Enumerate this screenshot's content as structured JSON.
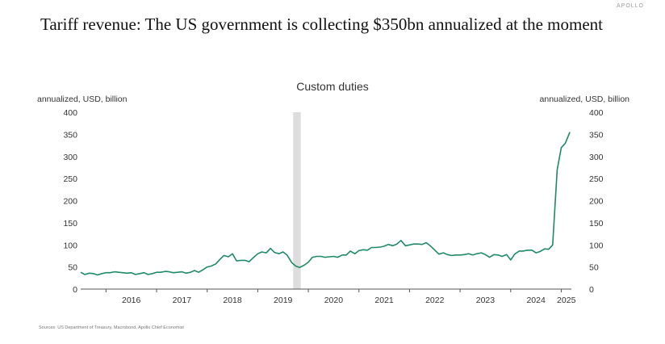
{
  "headline": "Tariff revenue: The US government is collecting $350bn annualized at the moment",
  "corner_logo": "APOLLO",
  "source": "Sources: US Department of Treasury, Macrobond, Apollo Chief Economist",
  "colors": {
    "line": "#1f8a66",
    "shade": "#dddddd",
    "axis": "#555555"
  },
  "chart_data": {
    "type": "line",
    "title": "Custom duties",
    "ylabel_left": "annualized, USD, billion",
    "ylabel_right": "annualized, USD, billion",
    "ylim": [
      0,
      400
    ],
    "yticks": [
      0,
      50,
      100,
      150,
      200,
      250,
      300,
      350,
      400
    ],
    "xlim": [
      2015.5,
      2025.2
    ],
    "xtick_labels": [
      "2016",
      "2017",
      "2018",
      "2019",
      "2020",
      "2021",
      "2022",
      "2023",
      "2024",
      "2025"
    ],
    "recession_band": [
      2019.7,
      2019.85
    ],
    "series": [
      {
        "name": "Custom duties",
        "x": [
          2015.5,
          2015.58,
          2015.67,
          2015.75,
          2015.83,
          2015.92,
          2016.0,
          2016.08,
          2016.17,
          2016.25,
          2016.33,
          2016.42,
          2016.5,
          2016.58,
          2016.67,
          2016.75,
          2016.83,
          2016.92,
          2017.0,
          2017.08,
          2017.17,
          2017.25,
          2017.33,
          2017.42,
          2017.5,
          2017.58,
          2017.67,
          2017.75,
          2017.83,
          2017.92,
          2018.0,
          2018.08,
          2018.17,
          2018.25,
          2018.33,
          2018.42,
          2018.5,
          2018.58,
          2018.67,
          2018.75,
          2018.83,
          2018.92,
          2019.0,
          2019.08,
          2019.17,
          2019.25,
          2019.33,
          2019.42,
          2019.5,
          2019.58,
          2019.67,
          2019.75,
          2019.83,
          2019.92,
          2020.0,
          2020.08,
          2020.17,
          2020.25,
          2020.33,
          2020.42,
          2020.5,
          2020.58,
          2020.67,
          2020.75,
          2020.83,
          2020.92,
          2021.0,
          2021.08,
          2021.17,
          2021.25,
          2021.33,
          2021.42,
          2021.5,
          2021.58,
          2021.67,
          2021.75,
          2021.83,
          2021.92,
          2022.0,
          2022.08,
          2022.17,
          2022.25,
          2022.33,
          2022.42,
          2022.5,
          2022.58,
          2022.67,
          2022.75,
          2022.83,
          2022.92,
          2023.0,
          2023.08,
          2023.17,
          2023.25,
          2023.33,
          2023.42,
          2023.5,
          2023.58,
          2023.67,
          2023.75,
          2023.83,
          2023.92,
          2024.0,
          2024.08,
          2024.17,
          2024.25,
          2024.33,
          2024.42,
          2024.5,
          2024.58,
          2024.67,
          2024.75,
          2024.83,
          2024.92,
          2025.0,
          2025.08,
          2025.17
        ],
        "values": [
          38,
          33,
          36,
          35,
          32,
          35,
          37,
          37,
          39,
          38,
          37,
          36,
          37,
          33,
          35,
          37,
          33,
          35,
          38,
          38,
          40,
          39,
          37,
          38,
          39,
          36,
          38,
          42,
          38,
          44,
          50,
          52,
          57,
          67,
          76,
          73,
          80,
          64,
          65,
          65,
          62,
          72,
          80,
          84,
          82,
          92,
          83,
          80,
          84,
          77,
          60,
          52,
          49,
          54,
          61,
          72,
          74,
          74,
          72,
          73,
          74,
          72,
          77,
          77,
          86,
          80,
          87,
          89,
          88,
          94,
          94,
          95,
          97,
          101,
          98,
          102,
          110,
          98,
          100,
          102,
          102,
          101,
          105,
          97,
          88,
          79,
          82,
          78,
          76,
          77,
          77,
          78,
          80,
          77,
          80,
          82,
          78,
          72,
          78,
          77,
          74,
          78,
          66,
          79,
          86,
          86,
          88,
          88,
          82,
          85,
          91,
          90,
          100,
          270,
          320,
          330,
          355
        ]
      }
    ]
  }
}
